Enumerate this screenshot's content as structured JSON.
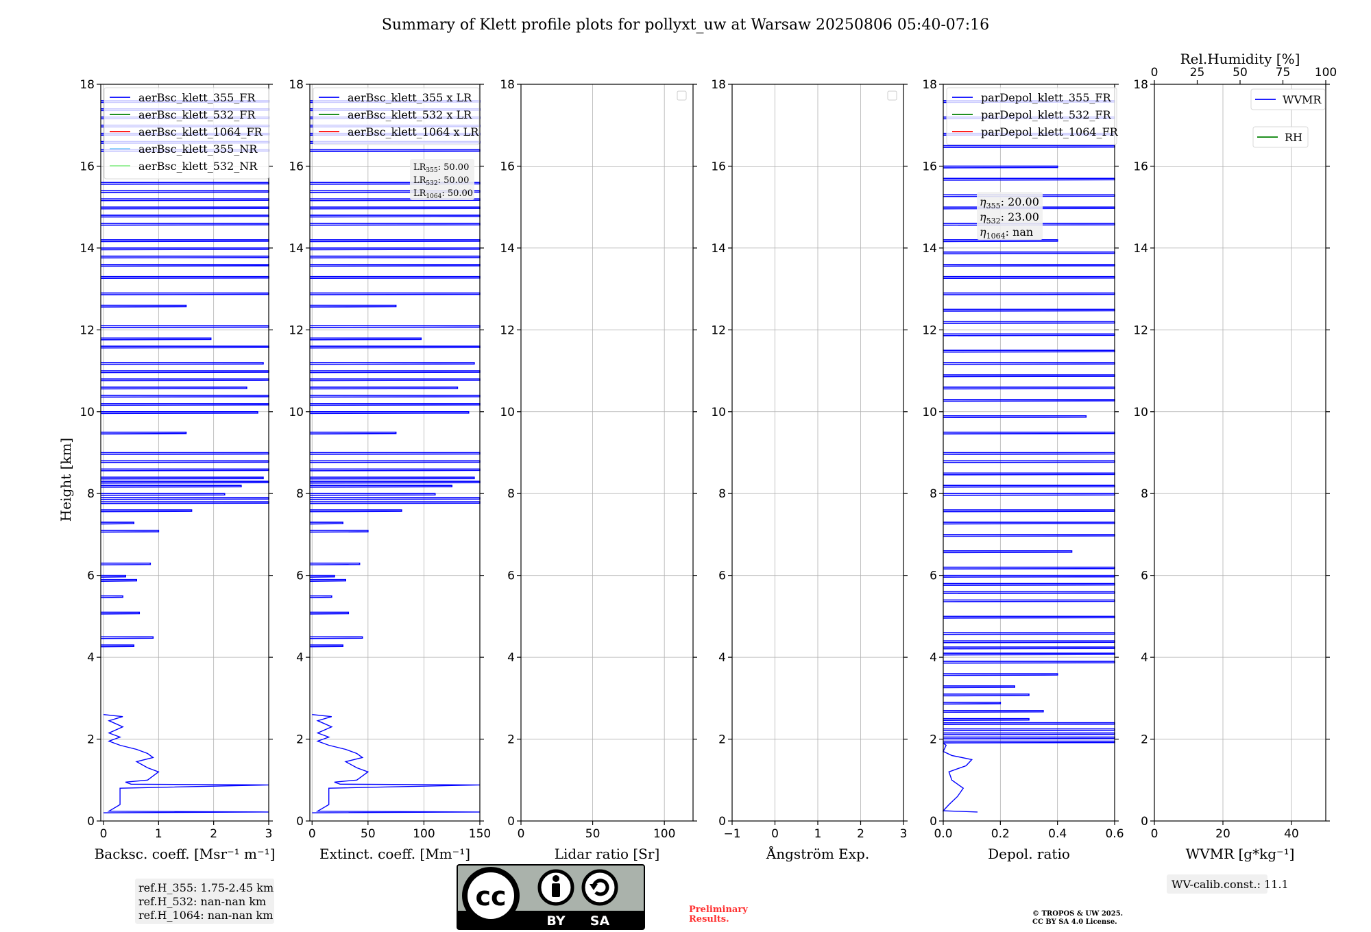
{
  "title": "Summary of Klett profile plots for pollyxt_uw at Warsaw 20250806 05:40-07:16",
  "shared_ylabel": "Height [km]",
  "chart_data": [
    {
      "type": "line",
      "name": "backscatter",
      "xlabel": "Backsc. coeff. [Msr⁻¹ m⁻¹]",
      "ylabel": "Height [km]",
      "xlim": [
        -0.05,
        3
      ],
      "ylim": [
        0,
        18
      ],
      "xticks": [
        "0",
        "1",
        "2",
        "3"
      ],
      "xtick_values": [
        0,
        1,
        2,
        3
      ],
      "yticks": [
        0,
        2,
        4,
        6,
        8,
        10,
        12,
        14,
        16,
        18
      ],
      "grid": true,
      "legend_location": "top",
      "legend": [
        {
          "label": "aerBsc_klett_355_FR",
          "color": "#0000ff"
        },
        {
          "label": "aerBsc_klett_532_FR",
          "color": "#008000"
        },
        {
          "label": "aerBsc_klett_1064_FR",
          "color": "#ff0000"
        },
        {
          "label": "aerBsc_klett_355_NR",
          "color": "#87cefa"
        },
        {
          "label": "aerBsc_klett_532_NR",
          "color": "#90ee90"
        }
      ],
      "series": [
        {
          "name": "aerBsc_klett_355_FR",
          "color": "#0000ff",
          "points": [
            [
              0.0,
              0.2
            ],
            [
              3.0,
              0.22
            ],
            [
              0.1,
              0.24
            ],
            [
              0.3,
              0.4
            ],
            [
              0.3,
              0.8
            ],
            [
              3.0,
              0.88
            ],
            [
              0.5,
              0.9
            ],
            [
              0.4,
              0.95
            ],
            [
              0.8,
              1.0
            ],
            [
              0.9,
              1.1
            ],
            [
              1.0,
              1.2
            ],
            [
              0.8,
              1.3
            ],
            [
              0.6,
              1.45
            ],
            [
              0.9,
              1.55
            ],
            [
              0.8,
              1.65
            ],
            [
              0.6,
              1.75
            ],
            [
              0.3,
              1.85
            ],
            [
              0.1,
              1.95
            ],
            [
              0.3,
              2.05
            ],
            [
              0.1,
              2.15
            ],
            [
              0.35,
              2.3
            ],
            [
              0.1,
              2.45
            ],
            [
              0.35,
              2.55
            ],
            [
              0.0,
              2.6
            ]
          ],
          "spikes_km": [
            4.3,
            4.5,
            5.1,
            5.5,
            5.9,
            6.0,
            6.3,
            7.1,
            7.3,
            7.6,
            7.8,
            7.9,
            8.0,
            8.2,
            8.3,
            8.4,
            8.6,
            8.8,
            9.0,
            9.5,
            10.0,
            10.2,
            10.4,
            10.6,
            10.8,
            11.0,
            11.2,
            11.6,
            11.8,
            12.1,
            12.6,
            12.9,
            13.3,
            13.6,
            13.8,
            14.0,
            14.2,
            14.6,
            14.8,
            15.0,
            15.2,
            15.4,
            15.6,
            16.4,
            16.6,
            16.8,
            17.0,
            17.2,
            17.4,
            17.6
          ],
          "spike_values": [
            0.55,
            0.9,
            0.65,
            0.35,
            0.6,
            0.4,
            0.85,
            1.0,
            0.55,
            1.6,
            3.0,
            3.0,
            2.2,
            2.5,
            3.0,
            2.9,
            3.0,
            3.0,
            3.0,
            1.5,
            2.8,
            3.0,
            3.0,
            2.6,
            3.0,
            3.0,
            2.9,
            3.0,
            1.95,
            3.0,
            1.5,
            3.0,
            3.0,
            3.0,
            3.0,
            3.0,
            3.0,
            3.0,
            3.0,
            3.0,
            3.0,
            3.0,
            3.0,
            3.0,
            3.0,
            3.0,
            3.0,
            3.0,
            3.0,
            3.0
          ]
        }
      ],
      "annotation": [
        "ref.H_355: 1.75-2.45 km",
        "ref.H_532: nan-nan km",
        "ref.H_1064: nan-nan km"
      ]
    },
    {
      "type": "line",
      "name": "extinction",
      "xlabel": "Extinct. coeff. [Mm⁻¹]",
      "xlim": [
        -2,
        150
      ],
      "ylim": [
        0,
        18
      ],
      "xticks": [
        "0",
        "50",
        "100",
        "150"
      ],
      "xtick_values": [
        0,
        50,
        100,
        150
      ],
      "yticks": [
        0,
        2,
        4,
        6,
        8,
        10,
        12,
        14,
        16,
        18
      ],
      "grid": true,
      "legend_location": "top",
      "legend": [
        {
          "label": "aerBsc_klett_355 x LR",
          "color": "#0000ff"
        },
        {
          "label": "aerBsc_klett_532 x LR",
          "color": "#008000"
        },
        {
          "label": "aerBsc_klett_1064 x LR",
          "color": "#ff0000"
        }
      ],
      "lidar_ratios": [
        {
          "base": "LR",
          "sub": "355",
          "value": ": 50.00"
        },
        {
          "base": "LR",
          "sub": "532",
          "value": ": 50.00"
        },
        {
          "base": "LR",
          "sub": "1064",
          "value": ": 50.00"
        }
      ],
      "series": [
        {
          "name": "aerBsc_klett_355 x LR",
          "color": "#0000ff",
          "scale_from_backscatter": 50
        }
      ]
    },
    {
      "type": "line",
      "name": "lidar_ratio",
      "xlabel": "Lidar ratio [Sr]",
      "xlim": [
        0,
        120
      ],
      "ylim": [
        0,
        18
      ],
      "xticks": [
        "0",
        "50",
        "100"
      ],
      "xtick_values": [
        0,
        50,
        100
      ],
      "yticks": [
        0,
        2,
        4,
        6,
        8,
        10,
        12,
        14,
        16,
        18
      ],
      "grid": true,
      "series": []
    },
    {
      "type": "line",
      "name": "angstrom",
      "xlabel": "Ångström Exp.",
      "xlim": [
        -1,
        3
      ],
      "ylim": [
        0,
        18
      ],
      "xticks": [
        "−1",
        "0",
        "1",
        "2",
        "3"
      ],
      "xtick_values": [
        -1,
        0,
        1,
        2,
        3
      ],
      "yticks": [
        0,
        2,
        4,
        6,
        8,
        10,
        12,
        14,
        16,
        18
      ],
      "grid": true,
      "series": []
    },
    {
      "type": "line",
      "name": "depolarization",
      "xlabel": "Depol. ratio",
      "xlim": [
        0,
        0.6
      ],
      "ylim": [
        0,
        18
      ],
      "xticks": [
        "0.0",
        "0.2",
        "0.4",
        "0.6"
      ],
      "xtick_values": [
        0,
        0.2,
        0.4,
        0.6
      ],
      "yticks": [
        0,
        2,
        4,
        6,
        8,
        10,
        12,
        14,
        16,
        18
      ],
      "grid": true,
      "legend_location": "top",
      "legend": [
        {
          "label": "parDepol_klett_355_FR",
          "color": "#0000ff"
        },
        {
          "label": "parDepol_klett_532_FR",
          "color": "#008000"
        },
        {
          "label": "parDepol_klett_1064_FR",
          "color": "#ff0000"
        }
      ],
      "eta": [
        {
          "base": "η",
          "sub": "355",
          "value": ": 20.00"
        },
        {
          "base": "η",
          "sub": "532",
          "value": ": 23.00"
        },
        {
          "base": "η",
          "sub": "1064",
          "value": ": nan"
        }
      ],
      "series": [
        {
          "name": "parDepol_klett_355_FR",
          "color": "#0000ff",
          "points": [
            [
              0.12,
              0.22
            ],
            [
              0.0,
              0.25
            ],
            [
              0.02,
              0.4
            ],
            [
              0.05,
              0.6
            ],
            [
              0.07,
              0.8
            ],
            [
              0.03,
              1.0
            ],
            [
              0.02,
              1.2
            ],
            [
              0.08,
              1.35
            ],
            [
              0.1,
              1.5
            ],
            [
              0.03,
              1.6
            ],
            [
              0.0,
              1.7
            ],
            [
              0.01,
              1.85
            ],
            [
              0.0,
              1.9
            ]
          ],
          "spikes_km": [
            1.95,
            2.05,
            2.15,
            2.25,
            2.4,
            2.5,
            2.7,
            2.9,
            3.1,
            3.3,
            3.6,
            3.9,
            4.1,
            4.25,
            4.4,
            4.6,
            5.0,
            5.4,
            5.6,
            5.8,
            6.0,
            6.2,
            6.6,
            7.0,
            7.3,
            7.6,
            8.0,
            8.2,
            8.5,
            8.8,
            9.0,
            9.5,
            9.9,
            10.3,
            10.6,
            10.9,
            11.2,
            11.5,
            11.9,
            12.2,
            12.5,
            12.9,
            13.3,
            13.6,
            13.9,
            14.2,
            14.6,
            15.0,
            15.3,
            15.7,
            16.0,
            16.5,
            16.8,
            17.2,
            17.6
          ],
          "spike_values": [
            0.6,
            0.6,
            0.6,
            0.6,
            0.6,
            0.3,
            0.35,
            0.2,
            0.3,
            0.25,
            0.4,
            0.6,
            0.6,
            0.6,
            0.6,
            0.6,
            0.6,
            0.6,
            0.6,
            0.6,
            0.6,
            0.6,
            0.45,
            0.6,
            0.6,
            0.6,
            0.6,
            0.6,
            0.6,
            0.6,
            0.6,
            0.6,
            0.5,
            0.6,
            0.6,
            0.6,
            0.6,
            0.6,
            0.6,
            0.6,
            0.6,
            0.6,
            0.6,
            0.6,
            0.6,
            0.4,
            0.6,
            0.6,
            0.6,
            0.6,
            0.4,
            0.6,
            0.6,
            0.6,
            0.6
          ]
        }
      ]
    },
    {
      "type": "line",
      "name": "wvmr",
      "xlabel": "WVMR [g*kg⁻¹]",
      "xlim": [
        0,
        50
      ],
      "ylim": [
        0,
        18
      ],
      "xticks": [
        "0",
        "20",
        "40"
      ],
      "xtick_values": [
        0,
        20,
        40
      ],
      "yticks": [
        0,
        2,
        4,
        6,
        8,
        10,
        12,
        14,
        16,
        18
      ],
      "grid": true,
      "top_axis_label": "Rel.Humidity [%]",
      "top_xticks": [
        "0",
        "25",
        "50",
        "75",
        "100"
      ],
      "top_xtick_values": [
        0,
        25,
        50,
        75,
        100
      ],
      "legend": [
        {
          "label": "WVMR",
          "color": "#0000ff"
        },
        {
          "label": "RH",
          "color": "#008000"
        }
      ],
      "series": [],
      "annotation": "WV-calib.const.: 11.1"
    }
  ],
  "footer": {
    "license_logo": {
      "cc": "cc",
      "by": "BY",
      "sa": "SA"
    },
    "preliminary": [
      "Preliminary",
      "Results."
    ],
    "copyright": [
      "© TROPOS & UW 2025.",
      "CC BY SA 4.0 License."
    ]
  }
}
